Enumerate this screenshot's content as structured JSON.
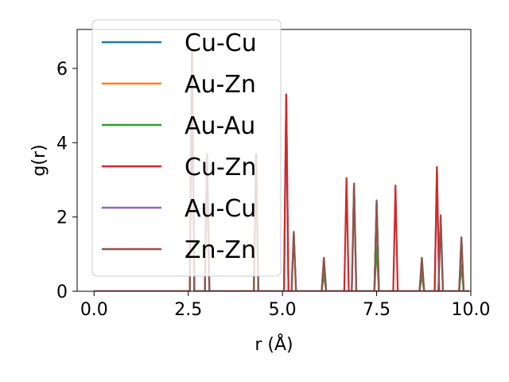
{
  "chart_data": {
    "type": "line",
    "xlabel": "r (Å)",
    "ylabel": "g(r)",
    "xlim": [
      -0.45,
      10.0
    ],
    "ylim": [
      0,
      7.05
    ],
    "xticks": [
      0.0,
      2.5,
      5.0,
      7.5,
      10.0
    ],
    "xtick_labels": [
      "0.0",
      "2.5",
      "5.0",
      "7.5",
      "10.0"
    ],
    "yticks": [
      0,
      2,
      4,
      6
    ],
    "ytick_labels": [
      "0",
      "2",
      "4",
      "6"
    ],
    "grid": false,
    "legend_position": "top-left",
    "peak_width": 0.06,
    "x_range": [
      0.0,
      9.95
    ],
    "series": [
      {
        "name": "Cu-Cu",
        "color": "#1f77b4",
        "peaks": [
          [
            2.6,
            6.5
          ],
          [
            4.3,
            3.7
          ],
          [
            5.1,
            5.3
          ],
          [
            7.5,
            2.4
          ],
          [
            9.1,
            3.3
          ]
        ]
      },
      {
        "name": "Au-Zn",
        "color": "#ff7f0e",
        "peaks": [
          [
            2.6,
            6.5
          ],
          [
            3.0,
            3.7
          ],
          [
            5.3,
            1.6
          ],
          [
            6.1,
            0.9
          ],
          [
            6.9,
            2.9
          ],
          [
            7.5,
            2.4
          ],
          [
            8.7,
            0.9
          ],
          [
            9.2,
            2.0
          ],
          [
            9.75,
            1.45
          ]
        ]
      },
      {
        "name": "Au-Au",
        "color": "#2ca02c",
        "peaks": [
          [
            2.6,
            6.5
          ],
          [
            4.3,
            3.7
          ],
          [
            6.1,
            0.45
          ],
          [
            7.5,
            1.2
          ],
          [
            8.7,
            0.45
          ],
          [
            9.75,
            0.7
          ]
        ]
      },
      {
        "name": "Cu-Zn",
        "color": "#d62728",
        "peaks": [
          [
            2.6,
            6.5
          ],
          [
            3.0,
            3.7
          ],
          [
            5.1,
            5.3
          ],
          [
            6.7,
            3.05
          ],
          [
            8.0,
            2.85
          ],
          [
            9.1,
            3.35
          ]
        ]
      },
      {
        "name": "Au-Cu",
        "color": "#9467bd",
        "peaks": [
          [
            2.6,
            6.5
          ],
          [
            3.0,
            3.7
          ],
          [
            5.3,
            1.6
          ],
          [
            6.1,
            0.9
          ],
          [
            6.9,
            2.9
          ],
          [
            7.5,
            2.4
          ],
          [
            8.7,
            0.9
          ],
          [
            9.2,
            2.0
          ],
          [
            9.75,
            1.45
          ]
        ]
      },
      {
        "name": "Zn-Zn",
        "color": "#8c564b",
        "peaks": [
          [
            2.6,
            6.5
          ],
          [
            3.0,
            3.7
          ],
          [
            4.3,
            3.7
          ],
          [
            5.3,
            1.6
          ],
          [
            6.1,
            0.9
          ],
          [
            6.9,
            2.9
          ],
          [
            7.5,
            2.45
          ],
          [
            8.7,
            0.9
          ],
          [
            9.2,
            2.05
          ],
          [
            9.75,
            1.45
          ]
        ]
      }
    ]
  }
}
